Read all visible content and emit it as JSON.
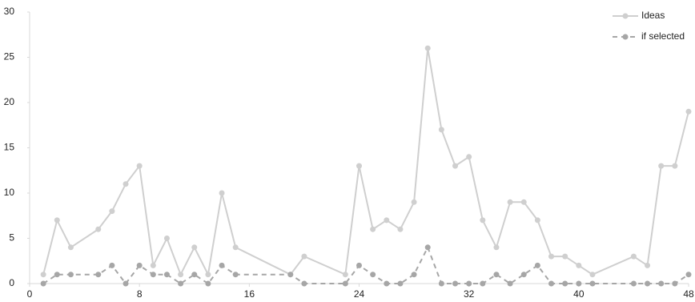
{
  "chart_data": {
    "type": "line",
    "x": [
      1,
      2,
      3,
      5,
      6,
      7,
      8,
      9,
      10,
      11,
      12,
      13,
      14,
      15,
      19,
      20,
      23,
      24,
      25,
      26,
      27,
      28,
      29,
      30,
      31,
      32,
      33,
      34,
      35,
      36,
      37,
      38,
      39,
      40,
      41,
      44,
      45,
      46,
      47,
      48
    ],
    "series": [
      {
        "name": "Ideas",
        "color": "#cfcfcf",
        "dashed": false,
        "values": [
          1,
          7,
          4,
          6,
          8,
          11,
          13,
          2,
          5,
          1,
          4,
          1,
          10,
          4,
          1,
          3,
          1,
          13,
          6,
          7,
          6,
          9,
          26,
          17,
          13,
          14,
          7,
          4,
          9,
          9,
          7,
          3,
          3,
          2,
          1,
          3,
          2,
          13,
          13,
          19
        ]
      },
      {
        "name": "if selected",
        "color": "#a6a6a6",
        "dashed": true,
        "values": [
          0,
          1,
          1,
          1,
          2,
          0,
          2,
          1,
          1,
          0,
          1,
          0,
          2,
          1,
          1,
          0,
          0,
          2,
          1,
          0,
          0,
          1,
          4,
          0,
          0,
          0,
          0,
          1,
          0,
          1,
          2,
          0,
          0,
          0,
          0,
          0,
          0,
          0,
          0,
          1
        ]
      }
    ],
    "xlim": [
      0,
      48
    ],
    "xticks": [
      0,
      8,
      16,
      24,
      32,
      40,
      48
    ],
    "ylim": [
      0,
      30
    ],
    "yticks": [
      0,
      5,
      10,
      15,
      20,
      25,
      30
    ],
    "legend": "top-right"
  }
}
